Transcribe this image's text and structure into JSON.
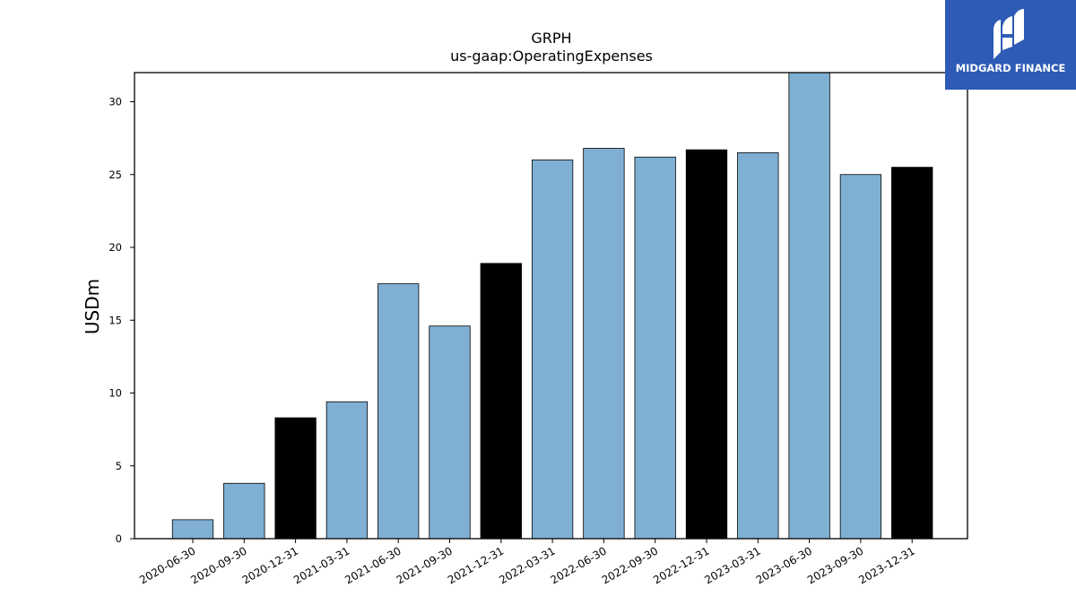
{
  "brand": {
    "name": "MIDGARD FINANCE",
    "bg_color": "#2d5bb5",
    "icon": "midgard-logo-icon"
  },
  "chart_data": {
    "type": "bar",
    "title": "GRPH",
    "subtitle": "us-gaap:OperatingExpenses",
    "xlabel": "",
    "ylabel": "USDm",
    "categories": [
      "2020-06-30",
      "2020-09-30",
      "2020-12-31",
      "2021-03-31",
      "2021-06-30",
      "2021-09-30",
      "2021-12-31",
      "2022-03-31",
      "2022-06-30",
      "2022-09-30",
      "2022-12-31",
      "2023-03-31",
      "2023-06-30",
      "2023-09-30",
      "2023-12-31"
    ],
    "values": [
      1.3,
      3.8,
      8.3,
      9.4,
      17.5,
      14.6,
      18.9,
      26.0,
      26.8,
      26.2,
      26.7,
      26.5,
      32.0,
      25.0,
      25.5
    ],
    "bar_colors": [
      "#7fb0d3",
      "#7fb0d3",
      "#000000",
      "#7fb0d3",
      "#7fb0d3",
      "#7fb0d3",
      "#000000",
      "#7fb0d3",
      "#7fb0d3",
      "#7fb0d3",
      "#000000",
      "#7fb0d3",
      "#7fb0d3",
      "#7fb0d3",
      "#000000"
    ],
    "ylim": [
      0,
      32
    ],
    "yticks": [
      0,
      5,
      10,
      15,
      20,
      25,
      30
    ],
    "grid": false
  }
}
